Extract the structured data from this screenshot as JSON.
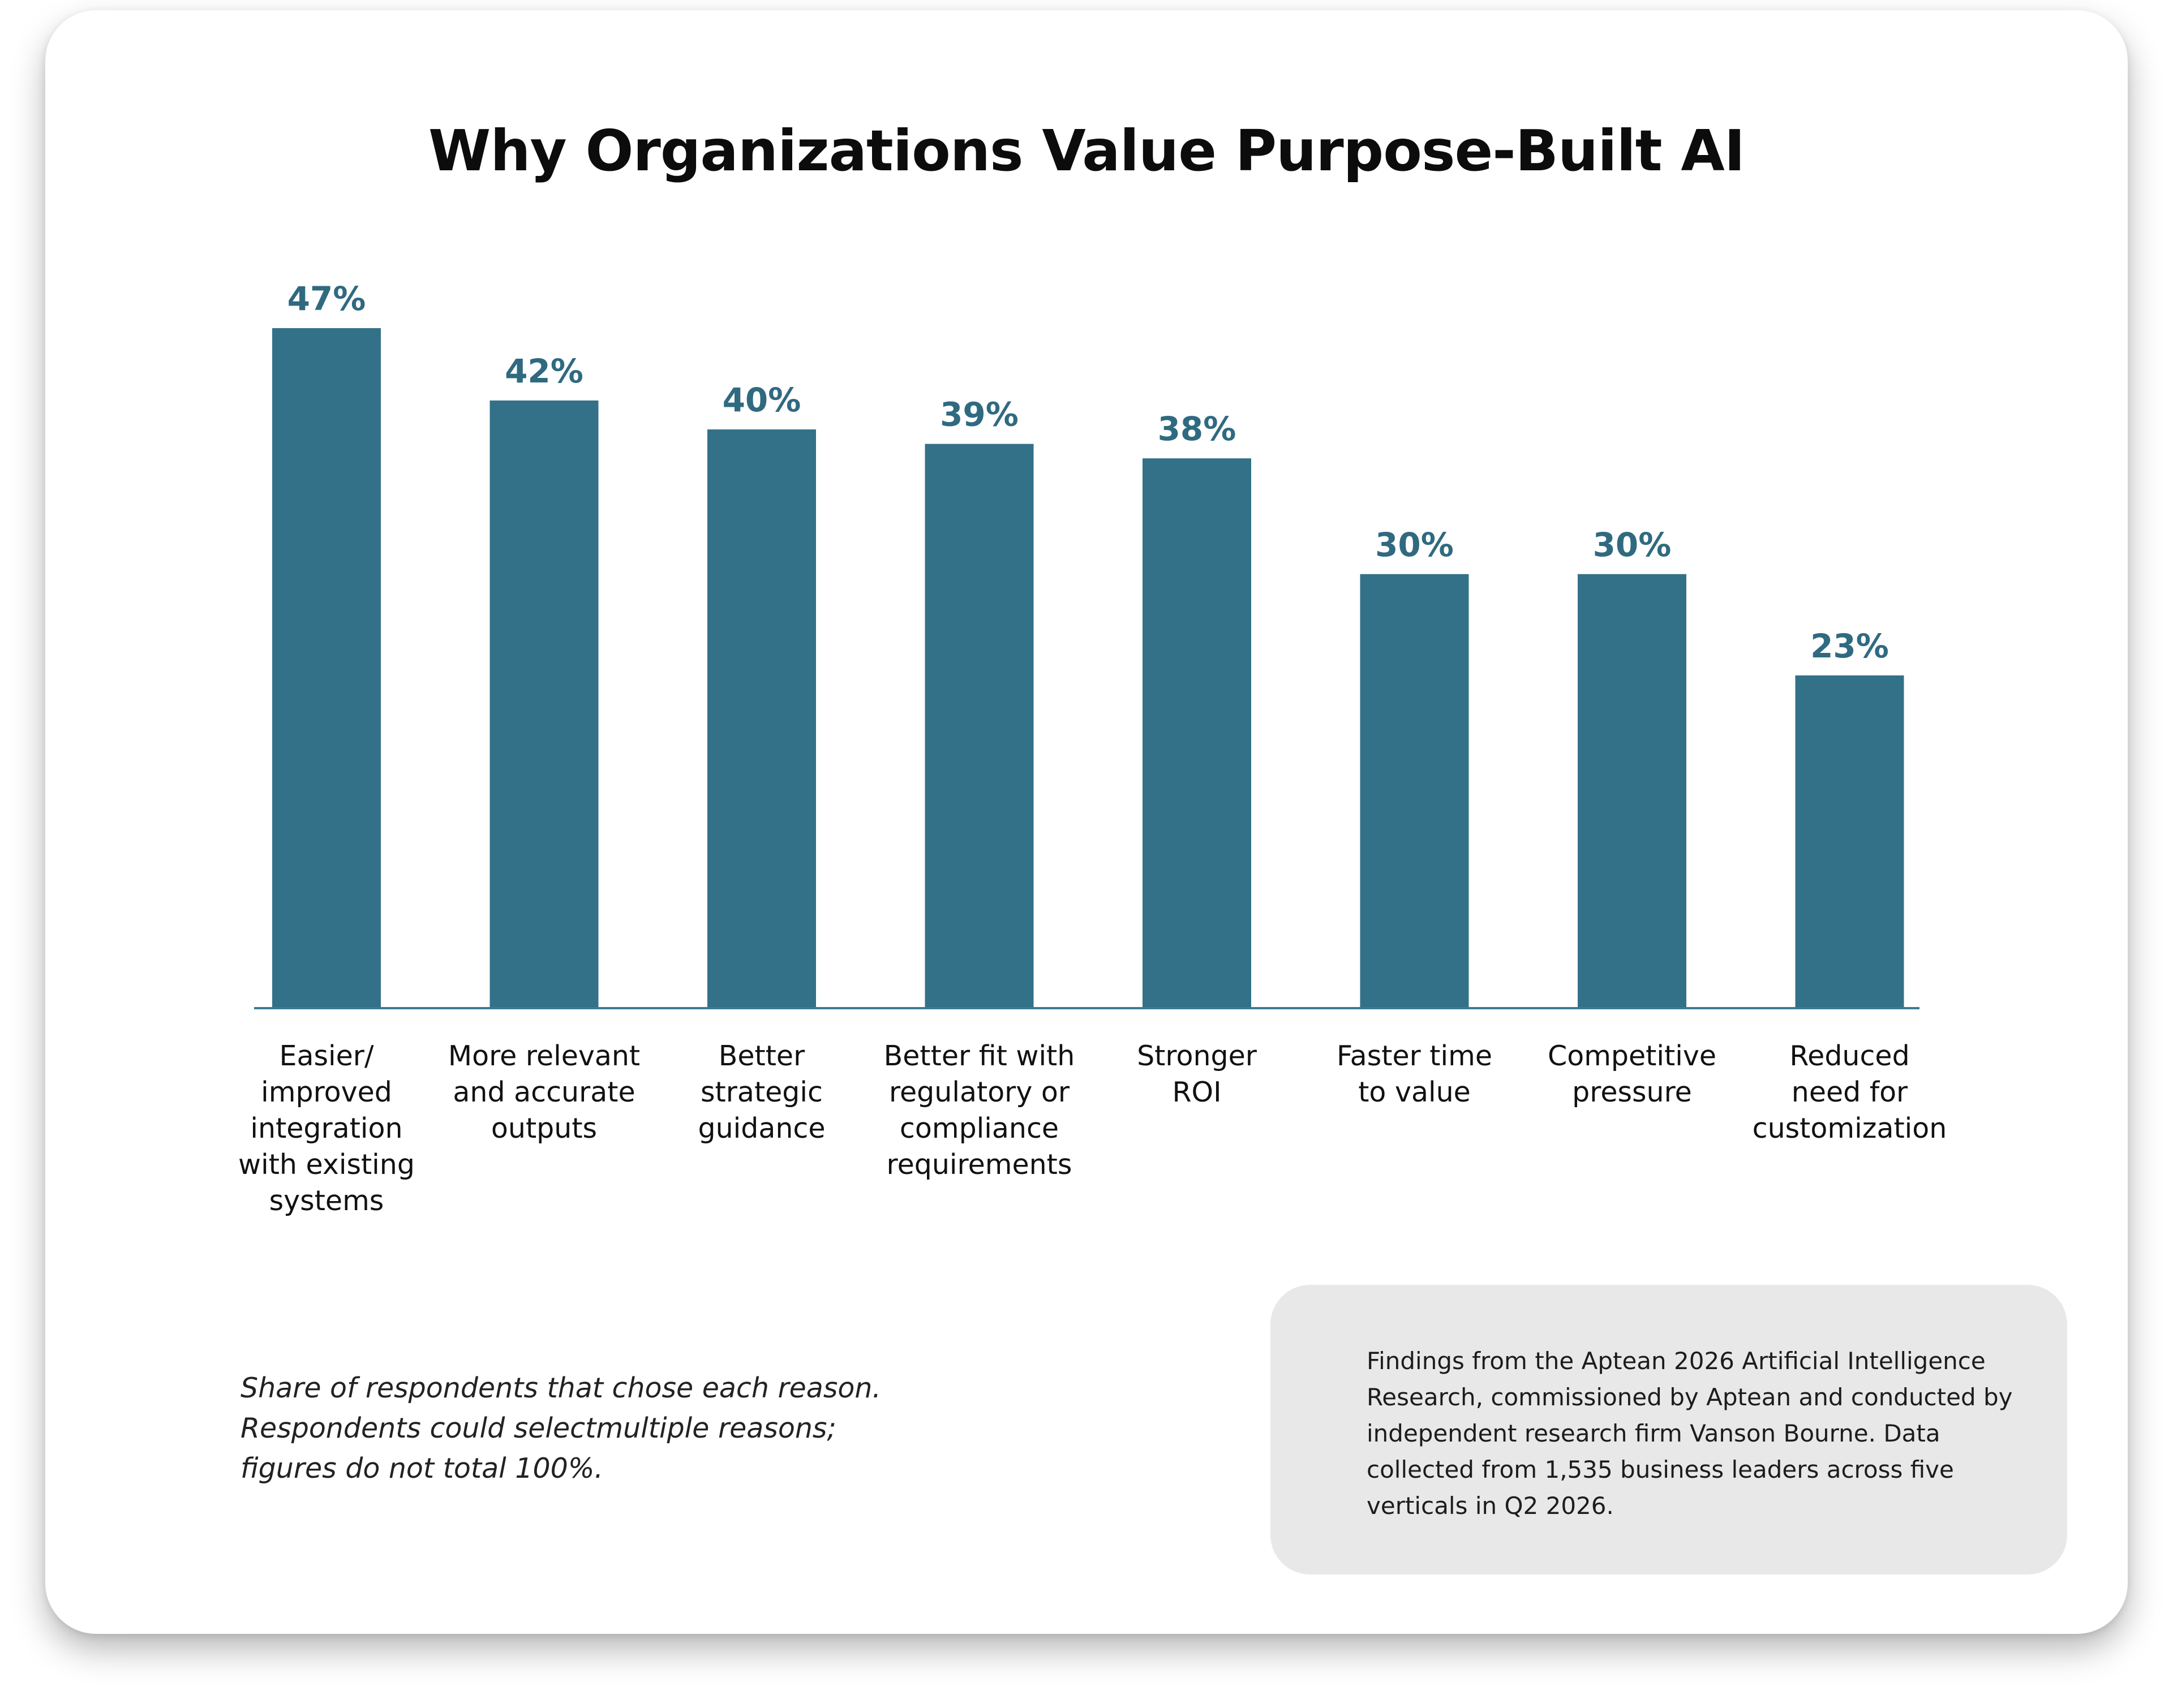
{
  "title": "Why Organizations Value Purpose-Built AI",
  "colors": {
    "bar": "#337189",
    "value_label": "#2f6a80",
    "axis": "#3d7a90",
    "category_label": "#111111"
  },
  "chart_data": {
    "type": "bar",
    "title": "Why Organizations Value Purpose-Built AI",
    "categories": [
      "Easier/ improved integration with existing systems",
      "More relevant and accurate outputs",
      "Better strategic guidance",
      "Better fit with regulatory or compliance requirements",
      "Stronger ROI",
      "Faster time to value",
      "Competitive pressure",
      "Reduced need for customization"
    ],
    "category_lines": [
      [
        "Easier/",
        "improved",
        "integration",
        "with existing",
        "systems"
      ],
      [
        "More relevant",
        "and accurate",
        "outputs"
      ],
      [
        "Better",
        "strategic",
        "guidance"
      ],
      [
        "Better fit with",
        "regulatory or",
        "compliance",
        "requirements"
      ],
      [
        "Stronger",
        "ROI"
      ],
      [
        "Faster time",
        "to value"
      ],
      [
        "Competitive",
        "pressure"
      ],
      [
        "Reduced",
        "need for",
        "customization"
      ]
    ],
    "values": [
      47,
      42,
      40,
      39,
      38,
      30,
      30,
      23
    ],
    "value_labels": [
      "47%",
      "42%",
      "40%",
      "39%",
      "38%",
      "30%",
      "30%",
      "23%"
    ],
    "unit": "%",
    "xlabel": "",
    "ylabel": "",
    "ylim": [
      0,
      47
    ],
    "grid": false,
    "legend": "none"
  },
  "note": "Share of respondents that chose each reason. Respondents could selectmultiple reasons; figures do not total 100%.",
  "source": "Findings from the Aptean 2026 Artificial Intelligence Research, commissioned by Aptean and conducted by independent research firm Vanson Bourne. Data collected from 1,535 business leaders across five verticals in Q2 2026."
}
